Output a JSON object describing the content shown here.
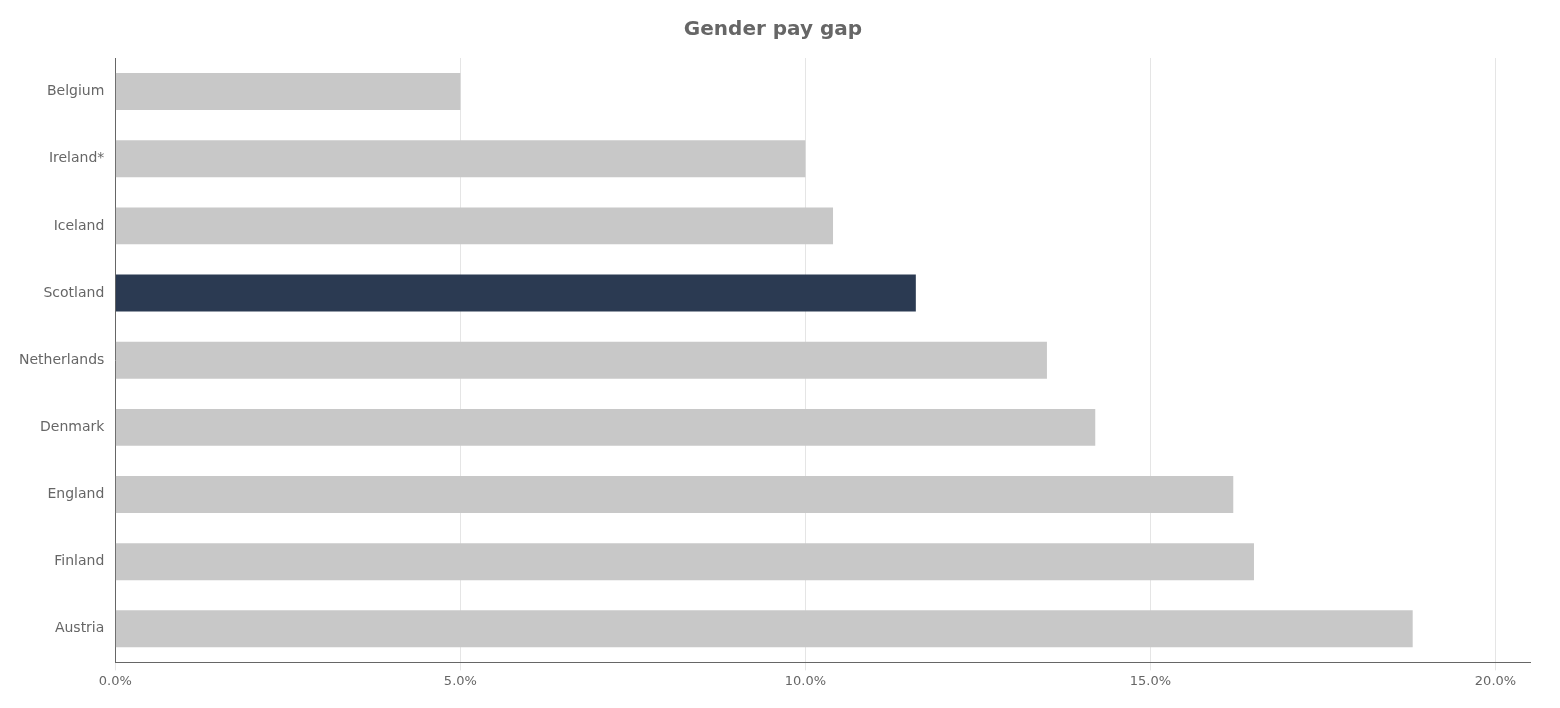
{
  "chart_data": {
    "type": "bar",
    "orientation": "horizontal",
    "title": "Gender pay gap",
    "categories": [
      "Belgium",
      "Ireland*",
      "Iceland",
      "Scotland",
      "Netherlands",
      "Denmark",
      "England",
      "Finland",
      "Austria"
    ],
    "values": [
      5.0,
      10.0,
      10.4,
      11.6,
      13.5,
      14.2,
      16.2,
      16.5,
      18.8
    ],
    "colors": [
      "#c8c8c8",
      "#c8c8c8",
      "#c8c8c8",
      "#2b3a52",
      "#c8c8c8",
      "#c8c8c8",
      "#c8c8c8",
      "#c8c8c8",
      "#c8c8c8"
    ],
    "xlim": [
      0,
      20.5
    ],
    "xticks": [
      {
        "value": 0,
        "label": "0.0%"
      },
      {
        "value": 5,
        "label": "5.0%"
      },
      {
        "value": 10,
        "label": "10.0%"
      },
      {
        "value": 15,
        "label": "15.0%"
      },
      {
        "value": 20,
        "label": "20.0%"
      }
    ],
    "grid": true
  }
}
